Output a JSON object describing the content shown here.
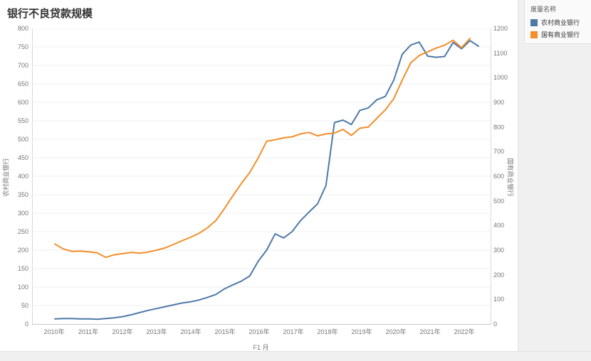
{
  "title": "银行不良贷款规模",
  "legend": {
    "title": "度量名称",
    "items": [
      {
        "label": "农村商业银行",
        "color": "#4e79a7"
      },
      {
        "label": "国有商业银行",
        "color": "#f28e2b"
      }
    ]
  },
  "chart_data": {
    "type": "line",
    "title": "银行不良贷款规模",
    "xlabel": "F1 月",
    "x_tick_labels": [
      "2010年",
      "2011年",
      "2012年",
      "2013年",
      "2014年",
      "2015年",
      "2016年",
      "2017年",
      "2018年",
      "2019年",
      "2020年",
      "2021年",
      "2022年"
    ],
    "x": [
      "2010Q1",
      "2010Q2",
      "2010Q3",
      "2010Q4",
      "2011Q1",
      "2011Q2",
      "2011Q3",
      "2011Q4",
      "2012Q1",
      "2012Q2",
      "2012Q3",
      "2012Q4",
      "2013Q1",
      "2013Q2",
      "2013Q3",
      "2013Q4",
      "2014Q1",
      "2014Q2",
      "2014Q3",
      "2014Q4",
      "2015Q1",
      "2015Q2",
      "2015Q3",
      "2015Q4",
      "2016Q1",
      "2016Q2",
      "2016Q3",
      "2016Q4",
      "2017Q1",
      "2017Q2",
      "2017Q3",
      "2017Q4",
      "2018Q1",
      "2018Q2",
      "2018Q3",
      "2018Q4",
      "2019Q1",
      "2019Q2",
      "2019Q3",
      "2019Q4",
      "2020Q1",
      "2020Q2",
      "2020Q3",
      "2020Q4",
      "2021Q1",
      "2021Q2",
      "2021Q3",
      "2021Q4",
      "2022Q1",
      "2022Q2",
      "2022Q3"
    ],
    "axes": {
      "left": {
        "label": "农村商业银行",
        "min": 0,
        "max": 800,
        "step": 50
      },
      "right": {
        "label": "国有商业银行",
        "min": 0,
        "max": 1200,
        "step": 100
      }
    },
    "grid": true,
    "legend_position": "top-right",
    "series": [
      {
        "name": "农村商业银行",
        "axis": "left",
        "color": "#4e79a7",
        "values": [
          14,
          15,
          15,
          14,
          14,
          13,
          15,
          17,
          20,
          25,
          31,
          37,
          42,
          47,
          52,
          57,
          60,
          65,
          72,
          80,
          95,
          106,
          116,
          130,
          170,
          200,
          244,
          233,
          250,
          280,
          303,
          325,
          375,
          545,
          552,
          540,
          578,
          585,
          607,
          616,
          660,
          730,
          755,
          763,
          725,
          722,
          724,
          762,
          745,
          767,
          752
        ]
      },
      {
        "name": "国有商业银行",
        "axis": "right",
        "color": "#f28e2b",
        "values": [
          325,
          305,
          295,
          296,
          293,
          289,
          271,
          281,
          286,
          291,
          288,
          292,
          300,
          309,
          323,
          338,
          352,
          368,
          390,
          420,
          468,
          520,
          570,
          615,
          674,
          742,
          748,
          756,
          760,
          772,
          778,
          764,
          772,
          775,
          790,
          766,
          795,
          800,
          835,
          869,
          915,
          990,
          1060,
          1090,
          1105,
          1120,
          1132,
          1152,
          1122,
          1160,
          null
        ]
      }
    ]
  }
}
